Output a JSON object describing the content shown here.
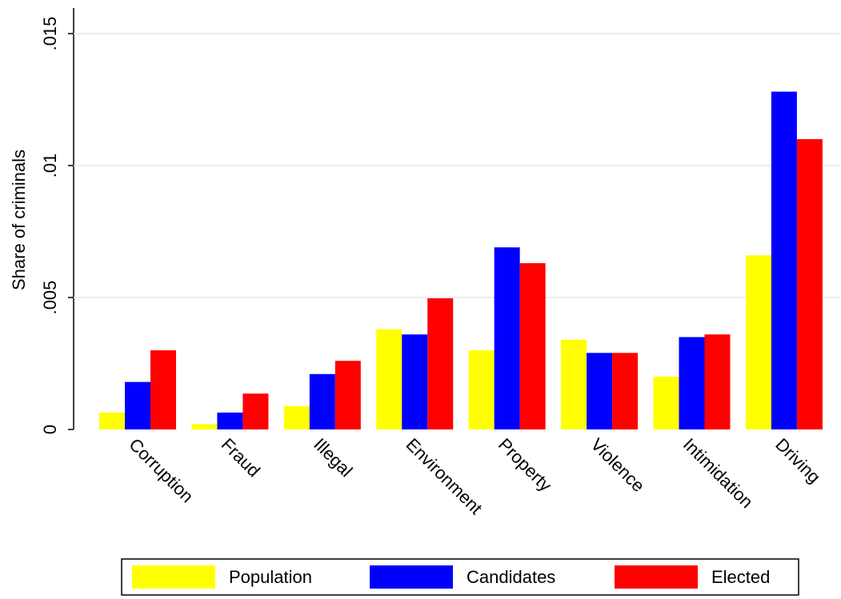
{
  "chart_data": {
    "type": "bar",
    "y_label": "Share of criminals",
    "categories": [
      "Corruption",
      "Fraud",
      "Illegal",
      "Environment",
      "Property",
      "Violence",
      "Intimidation",
      "Driving"
    ],
    "series": [
      {
        "name": "Population",
        "color": "#ffff00",
        "values": [
          0.00064,
          0.0002,
          0.00088,
          0.0038,
          0.003,
          0.0034,
          0.002,
          0.0066
        ]
      },
      {
        "name": "Candidates",
        "color": "#0000ff",
        "values": [
          0.0018,
          0.00064,
          0.0021,
          0.0036,
          0.0069,
          0.0029,
          0.0035,
          0.0128
        ]
      },
      {
        "name": "Elected",
        "color": "#ff0000",
        "values": [
          0.003,
          0.00136,
          0.0026,
          0.00497,
          0.0063,
          0.0029,
          0.0036,
          0.011
        ]
      }
    ],
    "ylim": [
      0,
      0.016
    ],
    "yticks": [
      0,
      {
        "value": 0.005,
        "label": ".005"
      },
      {
        "value": 0.01,
        "label": ".01"
      },
      {
        "value": 0.015,
        "label": ".015"
      }
    ],
    "grid": true
  }
}
